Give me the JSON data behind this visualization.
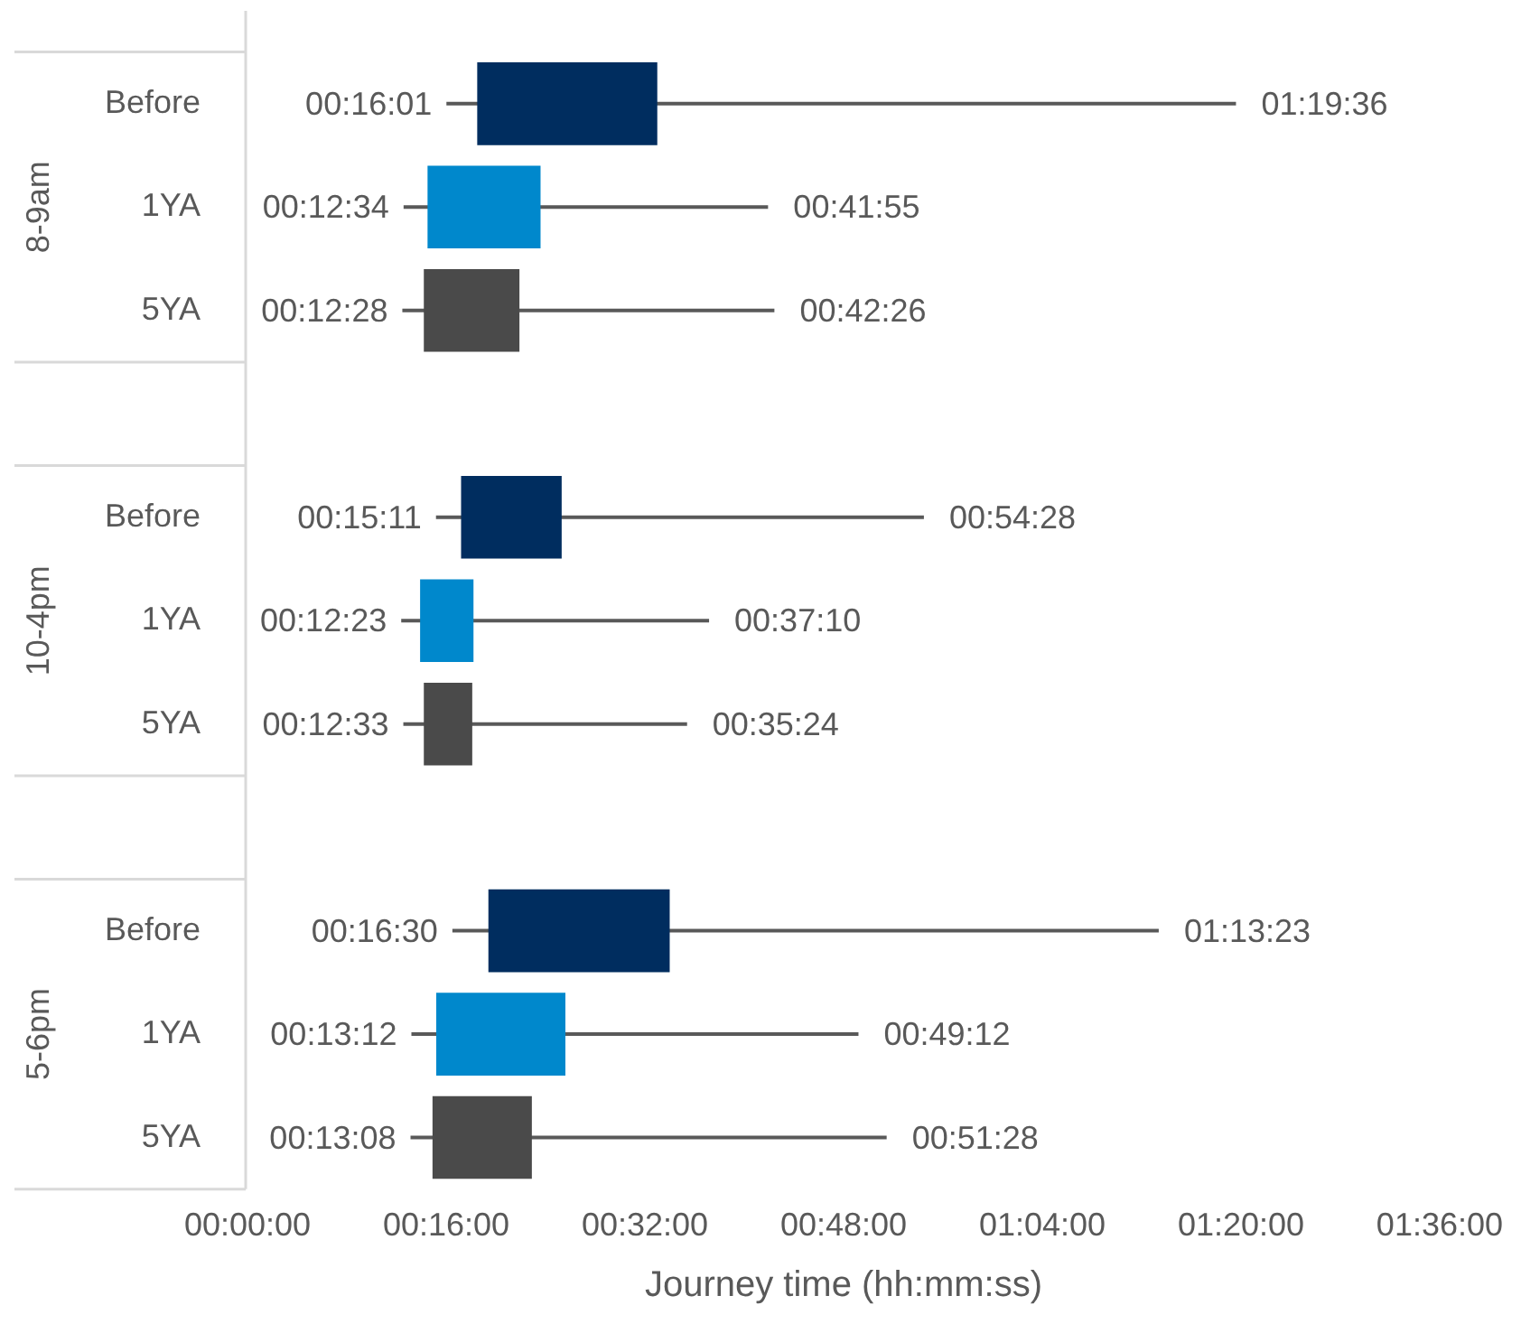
{
  "chart_data": {
    "type": "bar",
    "orientation": "horizontal",
    "xlabel": "Journey time (hh:mm:ss)",
    "categories": [
      "Before",
      "1YA",
      "5YA",
      null,
      "Before",
      "1YA",
      "5YA",
      null,
      "Before",
      "1YA",
      "5YA"
    ],
    "base": [
      18.5,
      14.5,
      14.2,
      null,
      17.2,
      13.9,
      14.2,
      null,
      19.4,
      15.2,
      14.9
    ],
    "values": [
      14.5,
      9.1,
      7.7,
      null,
      8.1,
      4.3,
      3.9,
      null,
      14.6,
      10.4,
      8.0
    ],
    "colors": [
      "#002d5f",
      "#0088cc",
      "#4a4a4a",
      null,
      "#002d5f",
      "#0088cc",
      "#4a4a4a",
      null,
      "#002d5f",
      "#0088cc",
      "#4a4a4a"
    ],
    "errors": [
      [
        16.02,
        79.6
      ],
      [
        12.57,
        41.92
      ],
      [
        12.47,
        42.43
      ],
      null,
      [
        15.18,
        54.47
      ],
      [
        12.38,
        37.17
      ],
      [
        12.55,
        35.4
      ],
      null,
      [
        16.5,
        73.38
      ],
      [
        13.2,
        49.2
      ],
      [
        13.13,
        51.47
      ]
    ],
    "value_labels": [
      [
        "00:16:01",
        "01:19:36"
      ],
      [
        "00:12:34",
        "00:41:55"
      ],
      [
        "00:12:28",
        "00:42:26"
      ],
      null,
      [
        "00:15:11",
        "00:54:28"
      ],
      [
        "00:12:23",
        "00:37:10"
      ],
      [
        "00:12:33",
        "00:35:24"
      ],
      null,
      [
        "00:16:30",
        "01:13:23"
      ],
      [
        "00:13:12",
        "00:49:12"
      ],
      [
        "00:13:08",
        "00:51:28"
      ]
    ],
    "annotations": [
      "8-9am",
      "10-4pm",
      "5-6pm"
    ],
    "xlim": [
      0,
      96
    ],
    "xticks": [
      {
        "value": 0,
        "label": "00:00:00"
      },
      {
        "value": 16,
        "label": "00:16:00"
      },
      {
        "value": 32,
        "label": "00:32:00"
      },
      {
        "value": 48,
        "label": "00:48:00"
      },
      {
        "value": 64,
        "label": "01:04:00"
      },
      {
        "value": 80,
        "label": "01:20:00"
      },
      {
        "value": 96,
        "label": "01:36:00"
      }
    ],
    "grid": false,
    "legend": false
  }
}
